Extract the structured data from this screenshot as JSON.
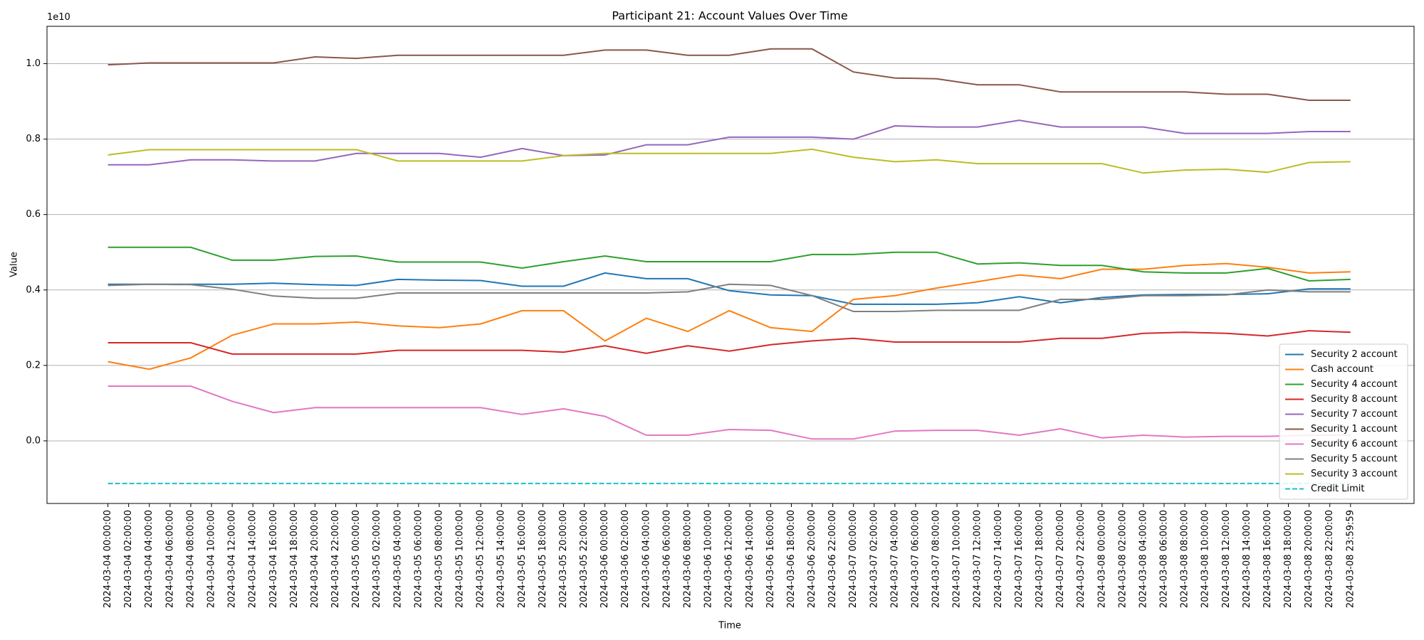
{
  "chart_data": {
    "type": "line",
    "title": "Participant 21: Account Values Over Time",
    "xlabel": "Time",
    "ylabel": "Value",
    "y_offset_label": "1e10",
    "grid": "y",
    "legend_corner": "lower right",
    "xlim": [
      "2024-03-03 18:07:00",
      "2024-03-09 06:08:00"
    ],
    "ylim": [
      -0.166,
      1.099
    ],
    "yticks": [
      {
        "value": 0,
        "label": "0.0"
      },
      0.2,
      0.4,
      0.6,
      0.8,
      {
        "value": 1,
        "label": "1.0"
      }
    ],
    "xticks": [
      "2024-03-04 00:00:00",
      "2024-03-04 02:00:00",
      "2024-03-04 04:00:00",
      "2024-03-04 06:00:00",
      "2024-03-04 08:00:00",
      "2024-03-04 10:00:00",
      "2024-03-04 12:00:00",
      "2024-03-04 14:00:00",
      "2024-03-04 16:00:00",
      "2024-03-04 18:00:00",
      "2024-03-04 20:00:00",
      "2024-03-04 22:00:00",
      "2024-03-05 00:00:00",
      "2024-03-05 02:00:00",
      "2024-03-05 04:00:00",
      "2024-03-05 06:00:00",
      "2024-03-05 08:00:00",
      "2024-03-05 10:00:00",
      "2024-03-05 12:00:00",
      "2024-03-05 14:00:00",
      "2024-03-05 16:00:00",
      "2024-03-05 18:00:00",
      "2024-03-05 20:00:00",
      "2024-03-05 22:00:00",
      "2024-03-06 00:00:00",
      "2024-03-06 02:00:00",
      "2024-03-06 04:00:00",
      "2024-03-06 06:00:00",
      "2024-03-06 08:00:00",
      "2024-03-06 10:00:00",
      "2024-03-06 12:00:00",
      "2024-03-06 14:00:00",
      "2024-03-06 16:00:00",
      "2024-03-06 18:00:00",
      "2024-03-06 20:00:00",
      "2024-03-06 22:00:00",
      "2024-03-07 00:00:00",
      "2024-03-07 02:00:00",
      "2024-03-07 04:00:00",
      "2024-03-07 06:00:00",
      "2024-03-07 08:00:00",
      "2024-03-07 10:00:00",
      "2024-03-07 12:00:00",
      "2024-03-07 14:00:00",
      "2024-03-07 16:00:00",
      "2024-03-07 18:00:00",
      "2024-03-07 20:00:00",
      "2024-03-07 22:00:00",
      "2024-03-08 00:00:00",
      "2024-03-08 02:00:00",
      "2024-03-08 04:00:00",
      "2024-03-08 06:00:00",
      "2024-03-08 08:00:00",
      "2024-03-08 10:00:00",
      "2024-03-08 12:00:00",
      "2024-03-08 14:00:00",
      "2024-03-08 16:00:00",
      "2024-03-08 18:00:00",
      "2024-03-08 20:00:00",
      "2024-03-08 22:00:00",
      "2024-03-08 23:59:59"
    ],
    "x": [
      "2024-03-04 00:00:00",
      "2024-03-04 04:00:00",
      "2024-03-04 08:00:00",
      "2024-03-04 12:00:00",
      "2024-03-04 16:00:00",
      "2024-03-04 20:00:00",
      "2024-03-05 00:00:00",
      "2024-03-05 04:00:00",
      "2024-03-05 08:00:00",
      "2024-03-05 12:00:00",
      "2024-03-05 16:00:00",
      "2024-03-05 20:00:00",
      "2024-03-06 00:00:00",
      "2024-03-06 04:00:00",
      "2024-03-06 08:00:00",
      "2024-03-06 12:00:00",
      "2024-03-06 16:00:00",
      "2024-03-06 20:00:00",
      "2024-03-07 00:00:00",
      "2024-03-07 04:00:00",
      "2024-03-07 08:00:00",
      "2024-03-07 12:00:00",
      "2024-03-07 16:00:00",
      "2024-03-07 20:00:00",
      "2024-03-08 00:00:00",
      "2024-03-08 04:00:00",
      "2024-03-08 08:00:00",
      "2024-03-08 12:00:00",
      "2024-03-08 16:00:00",
      "2024-03-08 20:00:00",
      "2024-03-08 23:59:59"
    ],
    "series": [
      {
        "name": "Security 2 account",
        "color": "#1f77b4",
        "values": [
          0.415,
          0.415,
          0.415,
          0.415,
          0.418,
          0.414,
          0.412,
          0.428,
          0.426,
          0.425,
          0.41,
          0.41,
          0.445,
          0.43,
          0.43,
          0.398,
          0.387,
          0.385,
          0.362,
          0.362,
          0.362,
          0.366,
          0.382,
          0.366,
          0.38,
          0.387,
          0.388,
          0.388,
          0.39,
          0.403,
          0.403
        ]
      },
      {
        "name": "Cash account",
        "color": "#ff7f0e",
        "values": [
          0.21,
          0.19,
          0.22,
          0.28,
          0.31,
          0.31,
          0.315,
          0.305,
          0.3,
          0.31,
          0.345,
          0.345,
          0.265,
          0.325,
          0.29,
          0.345,
          0.3,
          0.29,
          0.375,
          0.385,
          0.405,
          0.422,
          0.44,
          0.43,
          0.455,
          0.455,
          0.465,
          0.47,
          0.46,
          0.445,
          0.448
        ]
      },
      {
        "name": "Security 4 account",
        "color": "#2ca02c",
        "values": [
          0.513,
          0.513,
          0.513,
          0.479,
          0.479,
          0.489,
          0.49,
          0.474,
          0.474,
          0.474,
          0.458,
          0.475,
          0.49,
          0.475,
          0.475,
          0.475,
          0.475,
          0.494,
          0.494,
          0.5,
          0.5,
          0.469,
          0.472,
          0.465,
          0.465,
          0.448,
          0.445,
          0.445,
          0.457,
          0.424,
          0.428
        ]
      },
      {
        "name": "Security 8 account",
        "color": "#d62728",
        "values": [
          0.26,
          0.26,
          0.26,
          0.23,
          0.23,
          0.23,
          0.23,
          0.24,
          0.24,
          0.24,
          0.24,
          0.235,
          0.252,
          0.232,
          0.252,
          0.238,
          0.255,
          0.265,
          0.272,
          0.262,
          0.262,
          0.262,
          0.262,
          0.272,
          0.272,
          0.285,
          0.288,
          0.285,
          0.278,
          0.292,
          0.288
        ]
      },
      {
        "name": "Security 7 account",
        "color": "#9467bd",
        "values": [
          0.732,
          0.732,
          0.745,
          0.745,
          0.742,
          0.742,
          0.762,
          0.762,
          0.762,
          0.752,
          0.775,
          0.756,
          0.758,
          0.785,
          0.785,
          0.805,
          0.805,
          0.805,
          0.8,
          0.835,
          0.832,
          0.832,
          0.85,
          0.832,
          0.832,
          0.832,
          0.815,
          0.815,
          0.815,
          0.82,
          0.82
        ]
      },
      {
        "name": "Security 1 account",
        "color": "#8c564b",
        "values": [
          0.997,
          1.002,
          1.002,
          1.002,
          1.002,
          1.018,
          1.014,
          1.022,
          1.022,
          1.022,
          1.022,
          1.022,
          1.036,
          1.036,
          1.022,
          1.022,
          1.039,
          1.039,
          0.978,
          0.962,
          0.96,
          0.944,
          0.944,
          0.925,
          0.925,
          0.925,
          0.925,
          0.919,
          0.919,
          0.903,
          0.903
        ]
      },
      {
        "name": "Security 6 account",
        "color": "#e377c2",
        "values": [
          0.145,
          0.145,
          0.145,
          0.105,
          0.075,
          0.088,
          0.088,
          0.088,
          0.088,
          0.088,
          0.07,
          0.085,
          0.065,
          0.015,
          0.015,
          0.03,
          0.028,
          0.005,
          0.005,
          0.026,
          0.028,
          0.028,
          0.015,
          0.032,
          0.008,
          0.015,
          0.01,
          0.012,
          0.012,
          0.015,
          0.015
        ]
      },
      {
        "name": "Security 5 account",
        "color": "#7f7f7f",
        "values": [
          0.412,
          0.415,
          0.414,
          0.402,
          0.384,
          0.378,
          0.378,
          0.392,
          0.392,
          0.392,
          0.392,
          0.392,
          0.392,
          0.392,
          0.395,
          0.415,
          0.412,
          0.385,
          0.343,
          0.343,
          0.346,
          0.346,
          0.346,
          0.375,
          0.375,
          0.385,
          0.385,
          0.387,
          0.4,
          0.395,
          0.395
        ]
      },
      {
        "name": "Security 3 account",
        "color": "#bcbd22",
        "values": [
          0.758,
          0.772,
          0.772,
          0.772,
          0.772,
          0.772,
          0.772,
          0.742,
          0.742,
          0.742,
          0.742,
          0.756,
          0.762,
          0.762,
          0.762,
          0.762,
          0.762,
          0.773,
          0.752,
          0.74,
          0.745,
          0.735,
          0.735,
          0.735,
          0.735,
          0.71,
          0.718,
          0.72,
          0.712,
          0.738,
          0.74
        ]
      },
      {
        "name": "Credit Limit",
        "color": "#17becf",
        "dashed": true,
        "values": [
          -0.113,
          -0.113,
          -0.113,
          -0.113,
          -0.113,
          -0.113,
          -0.113,
          -0.113,
          -0.113,
          -0.113,
          -0.113,
          -0.113,
          -0.113,
          -0.113,
          -0.113,
          -0.113,
          -0.113,
          -0.113,
          -0.113,
          -0.113,
          -0.113,
          -0.113,
          -0.113,
          -0.113,
          -0.113,
          -0.113,
          -0.113,
          -0.113,
          -0.113,
          -0.113,
          -0.113
        ]
      }
    ]
  }
}
